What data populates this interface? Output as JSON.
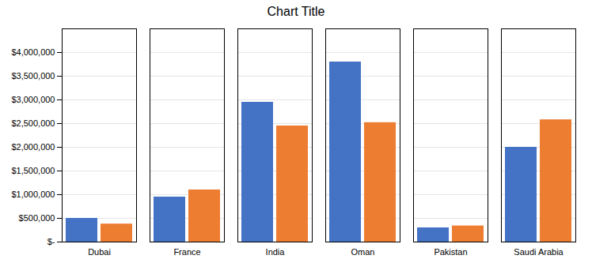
{
  "chart_data": {
    "type": "bar",
    "title": "Chart Title",
    "categories": [
      "Dubai",
      "France",
      "India",
      "Oman",
      "Pakistan",
      "Saudi Arabia"
    ],
    "series": [
      {
        "color": "#4472C4",
        "values": [
          500000,
          950000,
          2950000,
          3800000,
          300000,
          2000000
        ]
      },
      {
        "color": "#ED7D31",
        "values": [
          380000,
          1100000,
          2450000,
          2520000,
          340000,
          2580000
        ]
      }
    ],
    "ylim": [
      0,
      4500000
    ],
    "yticks": [
      {
        "value": 0,
        "label": "$-"
      },
      {
        "value": 500000,
        "label": "$500,000"
      },
      {
        "value": 1000000,
        "label": "$1,000,000"
      },
      {
        "value": 1500000,
        "label": "$1,500,000"
      },
      {
        "value": 2000000,
        "label": "$2,000,000"
      },
      {
        "value": 2500000,
        "label": "$2,500,000"
      },
      {
        "value": 3000000,
        "label": "$3,000,000"
      },
      {
        "value": 3500000,
        "label": "$3,500,000"
      },
      {
        "value": 4000000,
        "label": "$4,000,000"
      }
    ],
    "grid": true
  }
}
